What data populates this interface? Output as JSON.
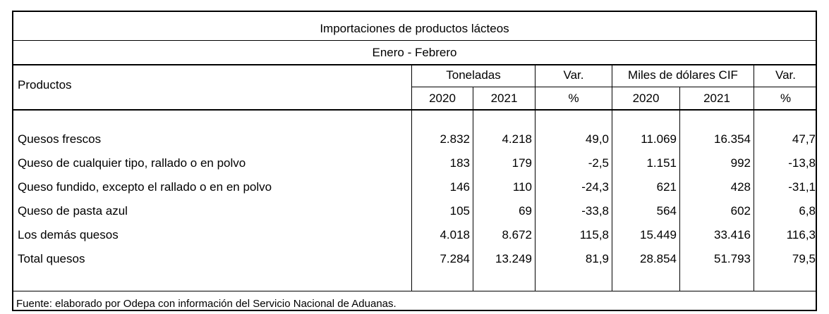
{
  "table": {
    "title": "Importaciones de productos lácteos",
    "subtitle": "Enero - Febrero",
    "header": {
      "productos": "Productos",
      "toneladas": "Toneladas",
      "var1": "Var.",
      "var1_unit": "%",
      "miles": "Miles de dólares CIF",
      "var2": "Var.",
      "var2_unit": "%",
      "y2020a": "2020",
      "y2021a": "2021",
      "y2020b": "2020",
      "y2021b": "2021"
    },
    "rows": [
      {
        "producto": "Quesos frescos",
        "t2020": "2.832",
        "t2021": "4.218",
        "tvar": "49,0",
        "m2020": "11.069",
        "m2021": "16.354",
        "mvar": "47,7"
      },
      {
        "producto": "Queso de cualquier tipo, rallado o en polvo",
        "t2020": "183",
        "t2021": "179",
        "tvar": "-2,5",
        "m2020": "1.151",
        "m2021": "992",
        "mvar": "-13,8"
      },
      {
        "producto": "Queso fundido, excepto el rallado o en en polvo",
        "t2020": "146",
        "t2021": "110",
        "tvar": "-24,3",
        "m2020": "621",
        "m2021": "428",
        "mvar": "-31,1"
      },
      {
        "producto": "Queso de pasta azul",
        "t2020": "105",
        "t2021": "69",
        "tvar": "-33,8",
        "m2020": "564",
        "m2021": "602",
        "mvar": "6,8"
      },
      {
        "producto": "Los demás quesos",
        "t2020": "4.018",
        "t2021": "8.672",
        "tvar": "115,8",
        "m2020": "15.449",
        "m2021": "33.416",
        "mvar": "116,3"
      },
      {
        "producto": "Total quesos",
        "t2020": "7.284",
        "t2021": "13.249",
        "tvar": "81,9",
        "m2020": "28.854",
        "m2021": "51.793",
        "mvar": "79,5"
      }
    ],
    "footer": "Fuente: elaborado por Odepa con información del Servicio Nacional de Aduanas."
  }
}
